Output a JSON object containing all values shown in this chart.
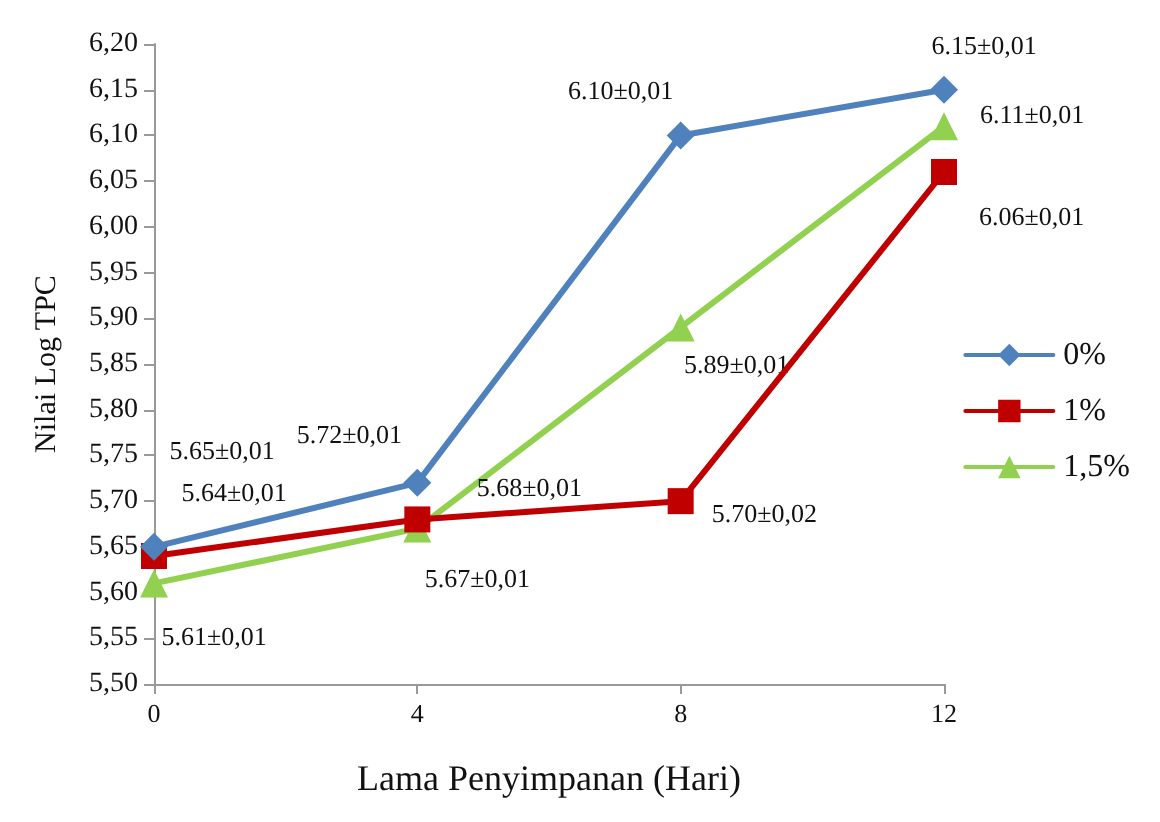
{
  "chart_data": {
    "type": "line",
    "xlabel": "Lama Penyimpanan (Hari)",
    "ylabel": "Nilai Log TPC",
    "categories": [
      "0",
      "4",
      "8",
      "12"
    ],
    "series": [
      {
        "name": "0%",
        "color": "#4f81bd",
        "marker": "diamond",
        "values": [
          5.65,
          5.72,
          6.1,
          6.15
        ],
        "value_labels": [
          "5.65±0,01",
          "5.72±0,01",
          "6.10±0,01",
          "6.15±0,01"
        ]
      },
      {
        "name": "1%",
        "color": "#c00000",
        "marker": "square",
        "values": [
          5.64,
          5.68,
          5.7,
          6.06
        ],
        "value_labels": [
          "5.64±0,01",
          "5.68±0,01",
          "5.70±0,02",
          "6.06±0,01"
        ]
      },
      {
        "name": "1,5%",
        "color": "#92d050",
        "marker": "triangle",
        "values": [
          5.61,
          5.67,
          5.89,
          6.11
        ],
        "value_labels": [
          "5.61±0,01",
          "5.67±0,01",
          "5.89±0,01",
          "6.11±0,01"
        ]
      }
    ],
    "ylim": [
      5.5,
      6.2
    ],
    "yticks": [
      {
        "value": 5.5,
        "label": "5,50"
      },
      {
        "value": 5.55,
        "label": "5,55"
      },
      {
        "value": 5.6,
        "label": "5,60"
      },
      {
        "value": 5.65,
        "label": "5,65"
      },
      {
        "value": 5.7,
        "label": "5,70"
      },
      {
        "value": 5.75,
        "label": "5,75"
      },
      {
        "value": 5.8,
        "label": "5,80"
      },
      {
        "value": 5.85,
        "label": "5,85"
      },
      {
        "value": 5.9,
        "label": "5,90"
      },
      {
        "value": 5.95,
        "label": "5,95"
      },
      {
        "value": 6.0,
        "label": "6,00"
      },
      {
        "value": 6.05,
        "label": "6,05"
      },
      {
        "value": 6.1,
        "label": "6,10"
      },
      {
        "value": 6.15,
        "label": "6,15"
      },
      {
        "value": 6.2,
        "label": "6,20"
      }
    ],
    "grid": false,
    "legend": "right",
    "line_style": "solid"
  }
}
